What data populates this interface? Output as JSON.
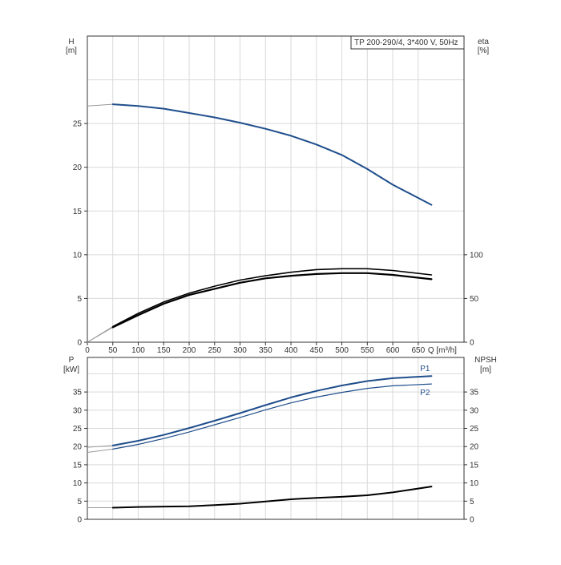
{
  "chart_data": [
    {
      "type": "line",
      "legend": "TP 200-290/4, 3*400 V, 50Hz",
      "left_axis": {
        "label": "H",
        "unit": "[m]",
        "ticks": [
          0,
          5,
          10,
          15,
          20,
          25
        ],
        "ylim": [
          0,
          35
        ]
      },
      "right_axis": {
        "label": "eta",
        "unit": "[%]",
        "ticks": [
          0,
          50,
          100
        ]
      },
      "x_axis": {
        "label": "Q [m³/h]",
        "ticks": [
          0,
          50,
          100,
          150,
          200,
          250,
          300,
          350,
          400,
          450,
          500,
          550,
          600,
          650
        ],
        "xlim": [
          0,
          740
        ]
      },
      "grid": true,
      "series": [
        {
          "axis": "H",
          "color": "#1f4e8c",
          "width": 2,
          "line_start": 50,
          "x": [
            0,
            50,
            100,
            150,
            200,
            250,
            300,
            350,
            400,
            450,
            500,
            550,
            600,
            676
          ],
          "y": [
            27.0,
            27.2,
            27.0,
            26.7,
            26.2,
            25.7,
            25.1,
            24.4,
            23.6,
            22.6,
            21.4,
            19.8,
            18.0,
            15.7
          ]
        },
        {
          "axis": "eta",
          "color": "#000000",
          "width": 1.6,
          "line_start": 50,
          "x": [
            0,
            50,
            100,
            150,
            200,
            250,
            300,
            350,
            400,
            450,
            500,
            550,
            600,
            676
          ],
          "y": [
            0,
            18,
            33,
            46,
            56,
            64,
            71,
            76,
            80,
            83,
            84,
            84,
            82,
            77
          ]
        },
        {
          "axis": "eta",
          "color": "#000000",
          "width": 2.2,
          "line_start": 50,
          "x": [
            0,
            50,
            100,
            150,
            200,
            250,
            300,
            350,
            400,
            450,
            500,
            550,
            600,
            676
          ],
          "y": [
            0,
            17,
            31,
            44,
            54,
            61,
            68,
            73,
            76,
            78,
            79,
            79,
            77,
            72
          ]
        }
      ]
    },
    {
      "type": "line",
      "left_axis": {
        "label": "P",
        "unit": "[kW]",
        "ticks": [
          0,
          5,
          10,
          15,
          20,
          25,
          30,
          35
        ],
        "ylim": [
          0,
          44.5
        ]
      },
      "right_axis": {
        "label": "NPSH",
        "unit": "[m]",
        "ticks": [
          0,
          5,
          10,
          15,
          20,
          25,
          30,
          35
        ]
      },
      "grid": true,
      "series": [
        {
          "name": "P1",
          "axis": "P",
          "color": "#1f4e8c",
          "width": 2,
          "line_start": 50,
          "x": [
            0,
            50,
            100,
            150,
            200,
            250,
            300,
            350,
            400,
            450,
            500,
            550,
            600,
            676
          ],
          "y": [
            19.8,
            20.3,
            21.6,
            23.2,
            25.1,
            27.1,
            29.2,
            31.4,
            33.5,
            35.3,
            36.8,
            38.0,
            38.8,
            39.4
          ]
        },
        {
          "name": "P2",
          "axis": "P",
          "color": "#1f4e8c",
          "width": 1.2,
          "line_start": 50,
          "x": [
            0,
            50,
            100,
            150,
            200,
            250,
            300,
            350,
            400,
            450,
            500,
            550,
            600,
            676
          ],
          "y": [
            18.4,
            19.3,
            20.6,
            22.2,
            24.0,
            26.0,
            28.0,
            30.1,
            32.0,
            33.6,
            34.9,
            36.0,
            36.7,
            37.2
          ]
        },
        {
          "axis": "NPSH",
          "color": "#000000",
          "width": 2,
          "line_start": 50,
          "x": [
            0,
            50,
            100,
            150,
            200,
            250,
            300,
            350,
            400,
            450,
            500,
            550,
            600,
            676
          ],
          "y": [
            3.2,
            3.2,
            3.4,
            3.5,
            3.6,
            3.9,
            4.3,
            4.9,
            5.5,
            5.9,
            6.2,
            6.6,
            7.4,
            9.0
          ]
        }
      ]
    }
  ]
}
